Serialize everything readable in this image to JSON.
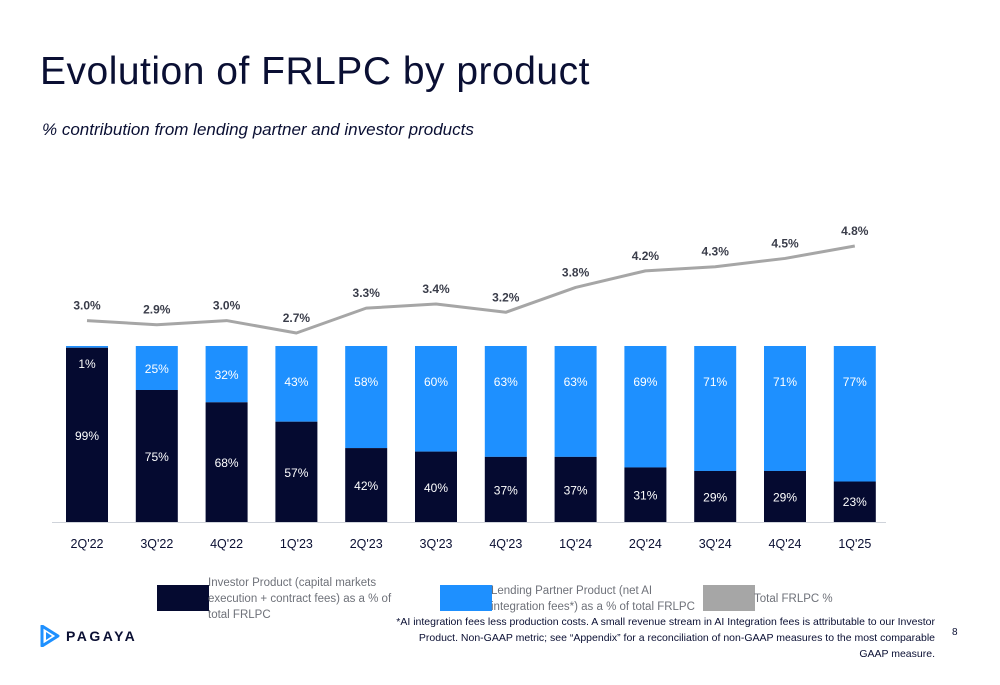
{
  "title": "Evolution of FRLPC by product",
  "subtitle": "% contribution from lending partner and investor products",
  "colors": {
    "investor": "#050a30",
    "lending": "#1e90ff",
    "total": "#a6a6a6",
    "text": "#0a0f33"
  },
  "chart_data": {
    "type": "bar",
    "stacked": true,
    "categories": [
      "2Q'22",
      "3Q'22",
      "4Q'22",
      "1Q'23",
      "2Q'23",
      "3Q'23",
      "4Q'23",
      "1Q'24",
      "2Q'24",
      "3Q'24",
      "4Q'24",
      "1Q'25"
    ],
    "series": [
      {
        "name": "Investor Product (capital markets execution + contract fees) as a % of total FRLPC",
        "values": [
          99,
          75,
          68,
          57,
          42,
          40,
          37,
          37,
          31,
          29,
          29,
          23
        ]
      },
      {
        "name": "Lending Partner Product (net AI integration fees*) as a % of total FRLPC",
        "values": [
          1,
          25,
          32,
          43,
          58,
          60,
          63,
          63,
          69,
          71,
          71,
          77
        ]
      }
    ],
    "line_series": {
      "name": "Total FRLPC %",
      "values": [
        3.0,
        2.9,
        3.0,
        2.7,
        3.3,
        3.4,
        3.2,
        3.8,
        4.2,
        4.3,
        4.5,
        4.8
      ],
      "labels": [
        "3.0%",
        "2.9%",
        "3.0%",
        "2.7%",
        "3.3%",
        "3.4%",
        "3.2%",
        "3.8%",
        "4.2%",
        "4.3%",
        "4.5%",
        "4.8%"
      ]
    },
    "bar_labels": {
      "investor": [
        "99%",
        "75%",
        "68%",
        "57%",
        "42%",
        "40%",
        "37%",
        "37%",
        "31%",
        "29%",
        "29%",
        "23%"
      ],
      "lending": [
        "1%",
        "25%",
        "32%",
        "43%",
        "58%",
        "60%",
        "63%",
        "63%",
        "69%",
        "71%",
        "71%",
        "77%"
      ]
    },
    "ylim": [
      0,
      100
    ],
    "grid": false,
    "legend_position": "bottom"
  },
  "legend": {
    "investor_label": "Investor Product (capital markets execution + contract fees) as a % of total FRLPC",
    "lending_label": "Lending Partner Product (net AI integration fees*) as a % of total FRLPC",
    "total_label": "Total FRLPC %"
  },
  "footnote": "*AI integration fees less production costs. A small revenue stream in AI Integration fees is attributable to our Investor Product. Non-GAAP metric; see “Appendix” for a reconciliation of non-GAAP measures to the most comparable GAAP measure.",
  "page_number": "8",
  "logo_text": "PAGAYA"
}
